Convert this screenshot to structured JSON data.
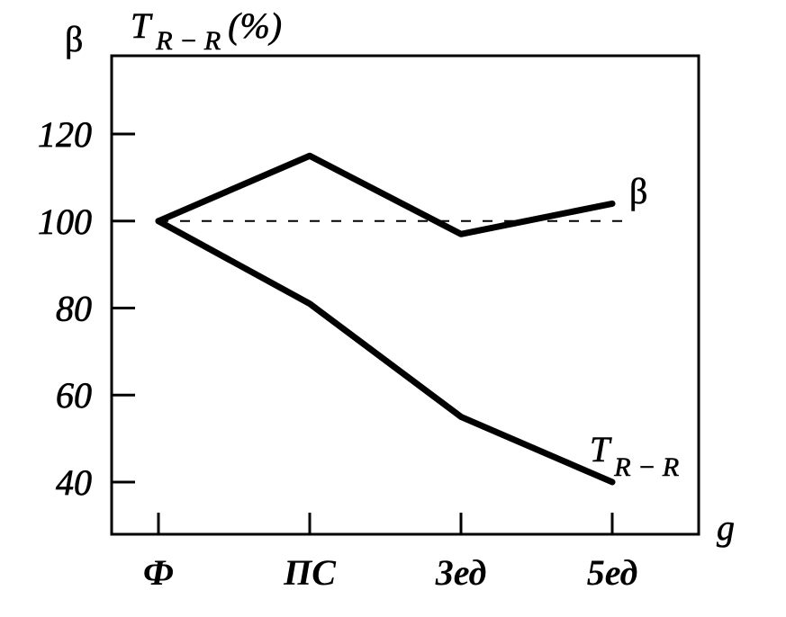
{
  "chart_data": {
    "type": "line",
    "categories": [
      "Ф",
      "ПС",
      "3ед",
      "5ед"
    ],
    "series": [
      {
        "name": "β",
        "values": [
          100,
          115,
          97,
          104
        ]
      },
      {
        "name": "T",
        "name_subscript": "R − R",
        "values": [
          100,
          81,
          55,
          40
        ]
      }
    ],
    "xlabel": "g",
    "ylabels": [
      {
        "text": "β"
      },
      {
        "symbol": "T",
        "subscript": "R − R",
        "unit": "(%)"
      }
    ],
    "yticks": [
      40,
      60,
      80,
      100,
      120
    ],
    "ylim": [
      28,
      138
    ],
    "reference_line": {
      "y": 100,
      "dashed": true
    },
    "grid": false,
    "legend": "none",
    "colors": {
      "line": "#000000",
      "background": "#ffffff"
    }
  }
}
